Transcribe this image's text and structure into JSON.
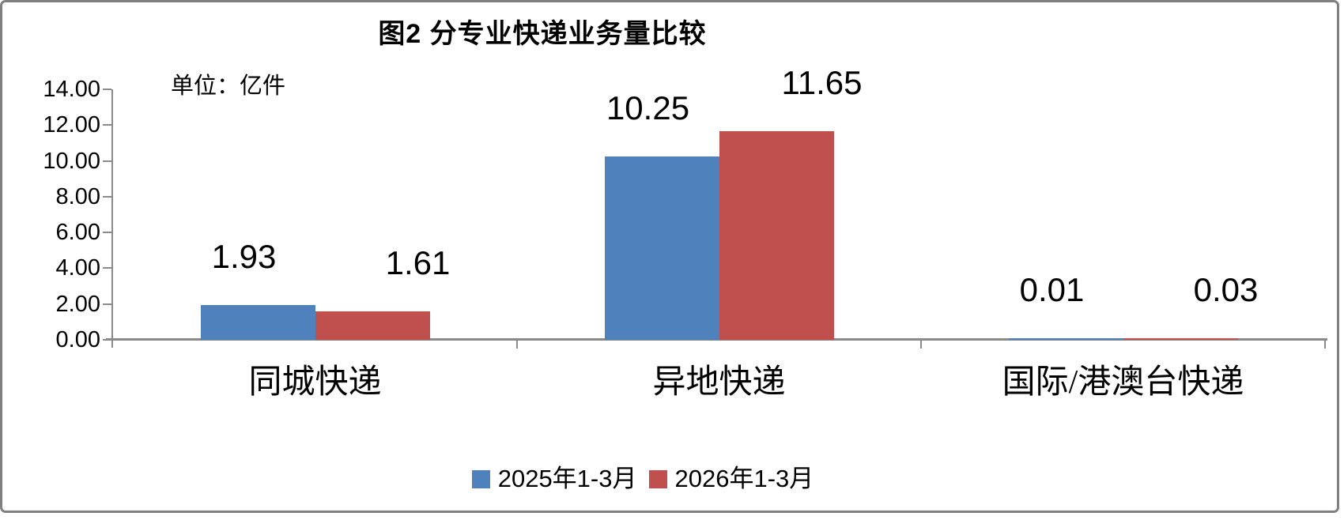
{
  "window": {
    "background": "#ffffff",
    "border_color": "#808080"
  },
  "chart_data": {
    "type": "bar",
    "title": "图2 分专业快递业务量比较",
    "unit_label": "单位：亿件",
    "categories": [
      "同城快递",
      "异地快递",
      "国际/港澳台快递"
    ],
    "series": [
      {
        "name": "2025年1-3月",
        "color": "#4F81BD",
        "values": [
          1.93,
          10.25,
          0.01
        ]
      },
      {
        "name": "2026年1-3月",
        "color": "#C0504D",
        "values": [
          1.61,
          11.65,
          0.03
        ]
      }
    ],
    "value_labels": [
      [
        "1.93",
        "1.61"
      ],
      [
        "10.25",
        "11.65"
      ],
      [
        "0.01",
        "0.03"
      ]
    ],
    "ylim": [
      0,
      14
    ],
    "ytick_step": 2,
    "yticks": [
      "0.00",
      "2.00",
      "4.00",
      "6.00",
      "8.00",
      "10.00",
      "12.00",
      "14.00"
    ],
    "grid": false,
    "legend_position": "bottom",
    "axis_color": "#8a8a8a",
    "text_color": "#000000"
  }
}
